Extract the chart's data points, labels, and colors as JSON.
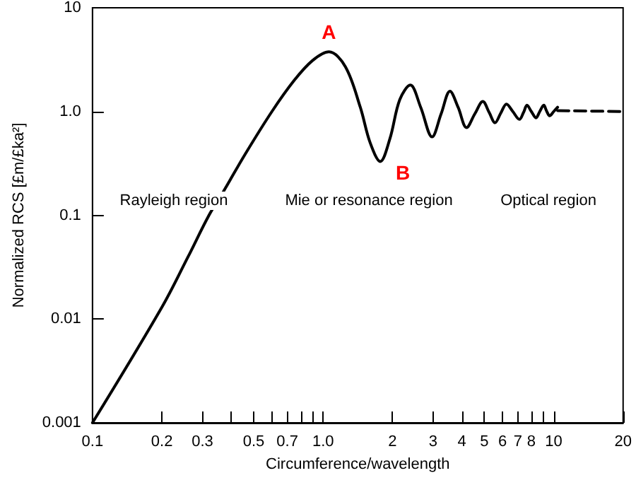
{
  "chart_data": {
    "type": "line",
    "xlabel": "Circumference/wavelength",
    "ylabel": "Normalized RCS [£m/£ka²]",
    "log": "xy",
    "grid": false,
    "marker": "none",
    "xlim": [
      0.1,
      20
    ],
    "ylim": [
      0.001,
      10
    ],
    "xticks": [
      0.1,
      0.2,
      0.3,
      {
        "value": 0.4,
        "label": null
      },
      0.5,
      {
        "value": 0.6,
        "label": null
      },
      0.7,
      {
        "value": 0.8,
        "label": null
      },
      {
        "value": 0.9,
        "label": null
      },
      {
        "value": 1,
        "label": "1.0"
      },
      2,
      3,
      4,
      5,
      6,
      7,
      8,
      {
        "value": 9,
        "label": null
      },
      10,
      20
    ],
    "yticks": [
      0.001,
      0.01,
      0.1,
      {
        "value": 1,
        "label": "1.0"
      },
      10
    ],
    "series": [
      {
        "color": "#000000",
        "line_style": "solid",
        "x": [
          0.1,
          0.2,
          0.26,
          0.32,
          0.37,
          0.46,
          0.6,
          0.75,
          0.9,
          1.06,
          1.25,
          1.45,
          1.6,
          1.77,
          1.95,
          2.15,
          2.39,
          2.65,
          2.97,
          3.25,
          3.55,
          3.85,
          4.19,
          4.55,
          4.93,
          5.25,
          5.57,
          5.9,
          6.24,
          6.65,
          7.1,
          7.4,
          7.66,
          8.0,
          8.38,
          8.7,
          9.06,
          9.3,
          9.6,
          10.0,
          10.4
        ],
        "values": [
          0.001,
          0.013,
          0.04,
          0.1,
          0.17,
          0.39,
          1.0,
          2.0,
          3.1,
          3.76,
          2.7,
          1.1,
          0.5,
          0.33,
          0.55,
          1.3,
          1.8,
          1.1,
          0.57,
          0.95,
          1.57,
          1.1,
          0.7,
          0.95,
          1.25,
          0.98,
          0.78,
          0.97,
          1.18,
          1.0,
          0.84,
          0.98,
          1.15,
          1.0,
          0.87,
          1.0,
          1.15,
          1.02,
          0.91,
          1.0,
          1.1
        ]
      },
      {
        "color": "#000000",
        "line_style": "dashed",
        "x": [
          10.4,
          20
        ],
        "values": [
          1.02,
          1.0
        ]
      }
    ],
    "annotations": [
      {
        "text": "A",
        "x": 1.06,
        "y": 3.76
      },
      {
        "text": "B",
        "x": 1.77,
        "y": 0.33
      },
      "Rayleigh region",
      "Mie or resonance region",
      "Optical region"
    ]
  }
}
